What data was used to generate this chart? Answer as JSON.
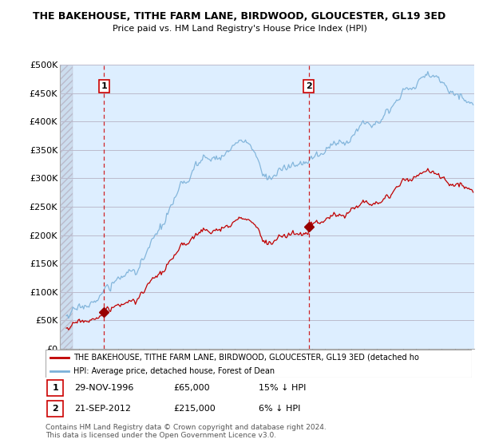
{
  "title": "THE BAKEHOUSE, TITHE FARM LANE, BIRDWOOD, GLOUCESTER, GL19 3ED",
  "subtitle": "Price paid vs. HM Land Registry's House Price Index (HPI)",
  "ylim": [
    0,
    500000
  ],
  "yticks": [
    0,
    50000,
    100000,
    150000,
    200000,
    250000,
    300000,
    350000,
    400000,
    450000,
    500000
  ],
  "ytick_labels": [
    "£0",
    "£50K",
    "£100K",
    "£150K",
    "£200K",
    "£250K",
    "£300K",
    "£350K",
    "£400K",
    "£450K",
    "£500K"
  ],
  "hpi_color": "#7ab0d8",
  "price_color": "#c00000",
  "marker_color": "#990000",
  "sale1_date": 1996.91,
  "sale1_price": 65000,
  "sale2_date": 2012.72,
  "sale2_price": 215000,
  "vline_color": "#cc0000",
  "legend_label_price": "THE BAKEHOUSE, TITHE FARM LANE, BIRDWOOD, GLOUCESTER, GL19 3ED (detached ho",
  "legend_label_hpi": "HPI: Average price, detached house, Forest of Dean",
  "note1_date": "29-NOV-1996",
  "note1_price": "£65,000",
  "note1_hpi": "15% ↓ HPI",
  "note2_date": "21-SEP-2012",
  "note2_price": "£215,000",
  "note2_hpi": "6% ↓ HPI",
  "footer": "Contains HM Land Registry data © Crown copyright and database right 2024.\nThis data is licensed under the Open Government Licence v3.0.",
  "bg_color": "#ffffff",
  "chart_bg_color": "#ddeeff",
  "grid_color": "#bbbbcc",
  "hatch_color": "#bbbbcc"
}
